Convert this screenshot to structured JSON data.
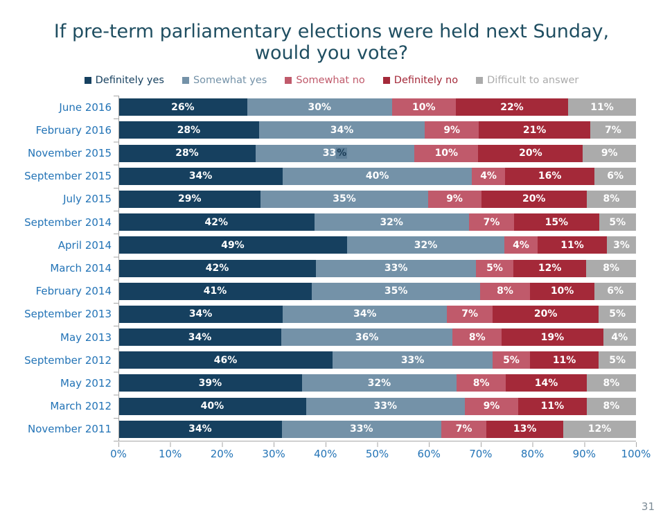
{
  "page": {
    "number": "31"
  },
  "title": {
    "line1": "If pre-term parliamentary elections were held next Sunday,",
    "line2": "would you vote?"
  },
  "legend": [
    {
      "label": "Definitely yes",
      "color": "#16405F"
    },
    {
      "label": "Somewhat yes",
      "color": "#7492A8"
    },
    {
      "label": "Somewhat no",
      "color": "#C05A6B"
    },
    {
      "label": "Definitely no",
      "color": "#A42939"
    },
    {
      "label": "Difficult to answer",
      "color": "#ABABAB"
    }
  ],
  "colors": {
    "category_label": "#2273B6",
    "axis": "#A6A6A6",
    "title": "#1F4E61",
    "page_number": "#7C8B96"
  },
  "chart_data": {
    "type": "bar",
    "stacked": true,
    "orientation": "horizontal",
    "title": "If pre-term parliamentary elections were held next Sunday, would you vote?",
    "value_suffix": "%",
    "categories": [
      "June 2016",
      "February 2016",
      "November 2015",
      "September 2015",
      "July 2015",
      "September 2014",
      "April 2014",
      "March 2014",
      "February 2014",
      "September 2013",
      "May 2013",
      "September 2012",
      "May 2012",
      "March 2012",
      "November 2011"
    ],
    "series": [
      {
        "name": "Definitely yes",
        "color": "#16405F",
        "values": [
          26,
          28,
          28,
          34,
          29,
          42,
          49,
          42,
          41,
          34,
          34,
          46,
          39,
          40,
          34
        ]
      },
      {
        "name": "Somewhat yes",
        "color": "#7492A8",
        "values": [
          30,
          34,
          33,
          40,
          35,
          32,
          32,
          33,
          35,
          34,
          36,
          33,
          32,
          33,
          33
        ]
      },
      {
        "name": "Somewhat no",
        "color": "#C05A6B",
        "values": [
          10,
          9,
          10,
          4,
          9,
          7,
          4,
          5,
          8,
          7,
          8,
          5,
          8,
          9,
          7
        ]
      },
      {
        "name": "Definitely no",
        "color": "#A42939",
        "values": [
          22,
          21,
          20,
          16,
          20,
          15,
          11,
          12,
          10,
          20,
          19,
          11,
          14,
          11,
          13
        ]
      },
      {
        "name": "Difficult to answer",
        "color": "#ABABAB",
        "values": [
          11,
          7,
          9,
          6,
          8,
          5,
          3,
          8,
          6,
          5,
          4,
          5,
          8,
          8,
          12
        ]
      }
    ],
    "x_axis": {
      "range": [
        0,
        100
      ],
      "ticks": [
        "0%",
        "10%",
        "20%",
        "30%",
        "40%",
        "50%",
        "60%",
        "70%",
        "80%",
        "90%",
        "100%"
      ]
    },
    "highlight": {
      "category_index": 2,
      "series_index": 1,
      "note": "percent sign of the 33% label appears text-selected",
      "box_color": "#5F8099",
      "text_color": "#1B3D57"
    },
    "legend_position": "top",
    "grid": false
  }
}
